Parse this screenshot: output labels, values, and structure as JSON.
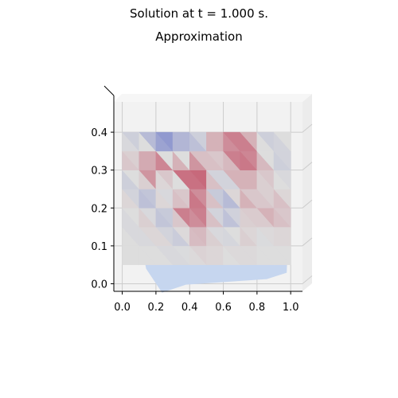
{
  "figure": {
    "suptitle": "Solution at t = 1.000 s.",
    "title": "Approximation"
  },
  "chart_data": {
    "type": "heatmap",
    "title": "Approximation",
    "suptitle": "Solution at t = 1.000 s.",
    "view": "3d-surface-top-view",
    "colormap": "coolwarm",
    "xlabel": "",
    "ylabel": "",
    "xlim": [
      -0.05,
      1.07
    ],
    "ylim": [
      -0.02,
      0.48
    ],
    "x_ticks": [
      "0.0",
      "0.2",
      "0.4",
      "0.6",
      "0.8",
      "1.0"
    ],
    "y_ticks": [
      "0.0",
      "0.1",
      "0.2",
      "0.3",
      "0.4"
    ],
    "grid": true,
    "colors": {
      "pane": "#f2f2f2",
      "grid": "#cccccc",
      "low": "#3b4cc0",
      "mid": "#dddddd",
      "high": "#b40426",
      "background_surface": "#c6d6ef"
    },
    "x": [
      0.0,
      0.1,
      0.2,
      0.3,
      0.4,
      0.5,
      0.6,
      0.7,
      0.8,
      0.9,
      1.0
    ],
    "y": [
      0.05,
      0.1,
      0.15,
      0.2,
      0.25,
      0.3,
      0.35,
      0.4
    ],
    "z": [
      [
        0.0,
        0.0,
        0.0,
        0.0,
        0.0,
        0.0,
        0.0,
        0.0,
        0.0,
        0.0,
        0.0
      ],
      [
        0.0,
        0.0,
        0.0,
        -0.1,
        0.05,
        0.1,
        0.0,
        0.05,
        0.0,
        0.0,
        0.0
      ],
      [
        0.0,
        -0.1,
        0.2,
        -0.3,
        0.3,
        0.1,
        -0.2,
        0.15,
        -0.05,
        0.1,
        0.0
      ],
      [
        0.0,
        0.1,
        -0.4,
        0.3,
        0.7,
        0.5,
        -0.5,
        0.1,
        0.2,
        0.3,
        0.0
      ],
      [
        0.0,
        -0.3,
        0.2,
        -0.6,
        0.2,
        0.4,
        -0.3,
        0.3,
        -0.2,
        0.1,
        0.0
      ],
      [
        0.0,
        0.3,
        0.5,
        0.4,
        0.9,
        0.3,
        -0.2,
        0.5,
        0.3,
        -0.1,
        0.0
      ],
      [
        0.0,
        -0.1,
        0.3,
        -0.7,
        -0.2,
        0.3,
        0.2,
        0.6,
        0.3,
        -0.2,
        0.0
      ],
      [
        0.0,
        -0.2,
        -0.8,
        0.1,
        -0.7,
        0.1,
        0.3,
        0.4,
        -0.1,
        0.0,
        0.0
      ]
    ],
    "zlim": [
      -1,
      1
    ]
  }
}
